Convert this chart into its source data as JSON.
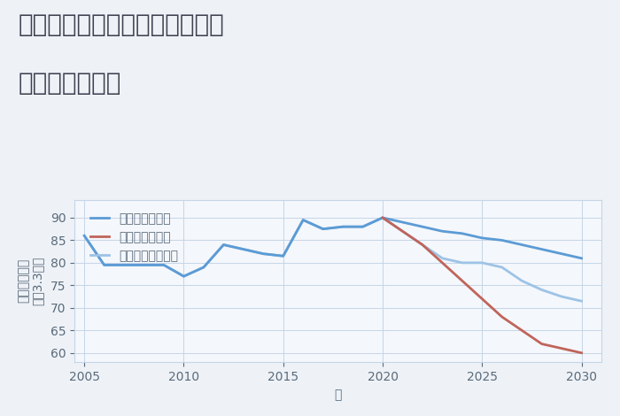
{
  "title_line1": "神奈川県相模原市南区鵜野森の",
  "title_line2": "土地の価格推移",
  "xlabel": "年",
  "ylabel_top": "単価（万円）",
  "ylabel_bottom": "坪（3.3㎡）",
  "xlim": [
    2004.5,
    2031
  ],
  "ylim": [
    58,
    94
  ],
  "yticks": [
    60,
    65,
    70,
    75,
    80,
    85,
    90
  ],
  "xticks": [
    2005,
    2010,
    2015,
    2020,
    2025,
    2030
  ],
  "good_scenario": {
    "x": [
      2005,
      2006,
      2007,
      2008,
      2009,
      2010,
      2011,
      2012,
      2013,
      2014,
      2015,
      2016,
      2017,
      2018,
      2019,
      2020,
      2021,
      2022,
      2023,
      2024,
      2025,
      2026,
      2027,
      2028,
      2029,
      2030
    ],
    "y": [
      86,
      79.5,
      79.5,
      79.5,
      79.5,
      77,
      79,
      84,
      83,
      82,
      81.5,
      89.5,
      87.5,
      88,
      88,
      90,
      89,
      88,
      87,
      86.5,
      85.5,
      85,
      84,
      83,
      82,
      81
    ],
    "label": "グッドシナリオ",
    "color": "#5b9bd5",
    "linewidth": 2.0
  },
  "bad_scenario": {
    "x": [
      2020,
      2021,
      2022,
      2023,
      2024,
      2025,
      2026,
      2027,
      2028,
      2029,
      2030
    ],
    "y": [
      90,
      87,
      84,
      80,
      76,
      72,
      68,
      65,
      62,
      61,
      60
    ],
    "label": "バッドシナリオ",
    "color": "#c0645a",
    "linewidth": 2.0
  },
  "normal_scenario": {
    "x": [
      2005,
      2006,
      2007,
      2008,
      2009,
      2010,
      2011,
      2012,
      2013,
      2014,
      2015,
      2016,
      2017,
      2018,
      2019,
      2020,
      2021,
      2022,
      2023,
      2024,
      2025,
      2026,
      2027,
      2028,
      2029,
      2030
    ],
    "y": [
      86,
      79.5,
      79.5,
      79.5,
      79.5,
      77,
      79,
      84,
      83,
      82,
      81.5,
      89.5,
      87.5,
      88,
      88,
      90,
      87,
      84,
      81,
      80,
      80,
      79,
      76,
      74,
      72.5,
      71.5
    ],
    "label": "ノーマルシナリオ",
    "color": "#9dc3e6",
    "linewidth": 2.0
  },
  "background_color": "#eef2f7",
  "plot_bg_color": "#f4f7fb",
  "grid_color": "#c5d5e8",
  "title_color": "#404050",
  "axis_color": "#5a6a7a",
  "title_fontsize": 20,
  "label_fontsize": 10,
  "tick_fontsize": 10,
  "legend_fontsize": 10
}
